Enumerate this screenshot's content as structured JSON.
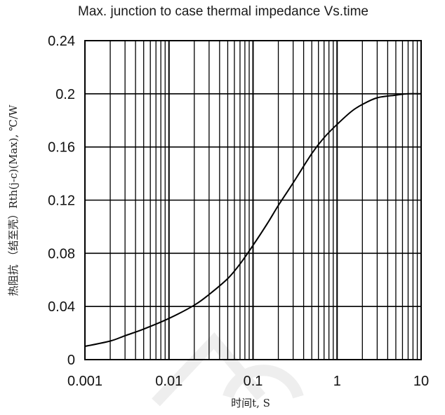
{
  "chart_data": {
    "type": "line",
    "title": "Max. junction to case thermal impedance Vs.time",
    "xlabel": "时间t, S",
    "ylabel": "热阻抗 （结至壳）Rth(j-c)(Max), ℃/W",
    "x_scale": "log",
    "xlim": [
      0.001,
      10
    ],
    "ylim": [
      0,
      0.24
    ],
    "x_tick_labels": [
      "0.001",
      "0.01",
      "0.1",
      "1",
      "10"
    ],
    "y_tick_labels": [
      "0",
      "0.04",
      "0.08",
      "0.12",
      "0.16",
      "0.2",
      "0.24"
    ],
    "grid": true,
    "legend": "none",
    "series": [
      {
        "color": "#000000",
        "x": [
          0.001,
          0.002,
          0.003,
          0.005,
          0.01,
          0.02,
          0.03,
          0.05,
          0.07,
          0.1,
          0.15,
          0.2,
          0.3,
          0.5,
          0.7,
          1,
          1.5,
          2,
          3,
          5,
          7,
          10
        ],
        "y": [
          0.01,
          0.014,
          0.018,
          0.023,
          0.031,
          0.041,
          0.049,
          0.061,
          0.072,
          0.086,
          0.103,
          0.116,
          0.133,
          0.155,
          0.167,
          0.177,
          0.187,
          0.192,
          0.197,
          0.199,
          0.2,
          0.2
        ]
      }
    ]
  },
  "colors": {
    "gridline": "#000000",
    "frame": "#000000",
    "watermark": "#eeeeee"
  }
}
